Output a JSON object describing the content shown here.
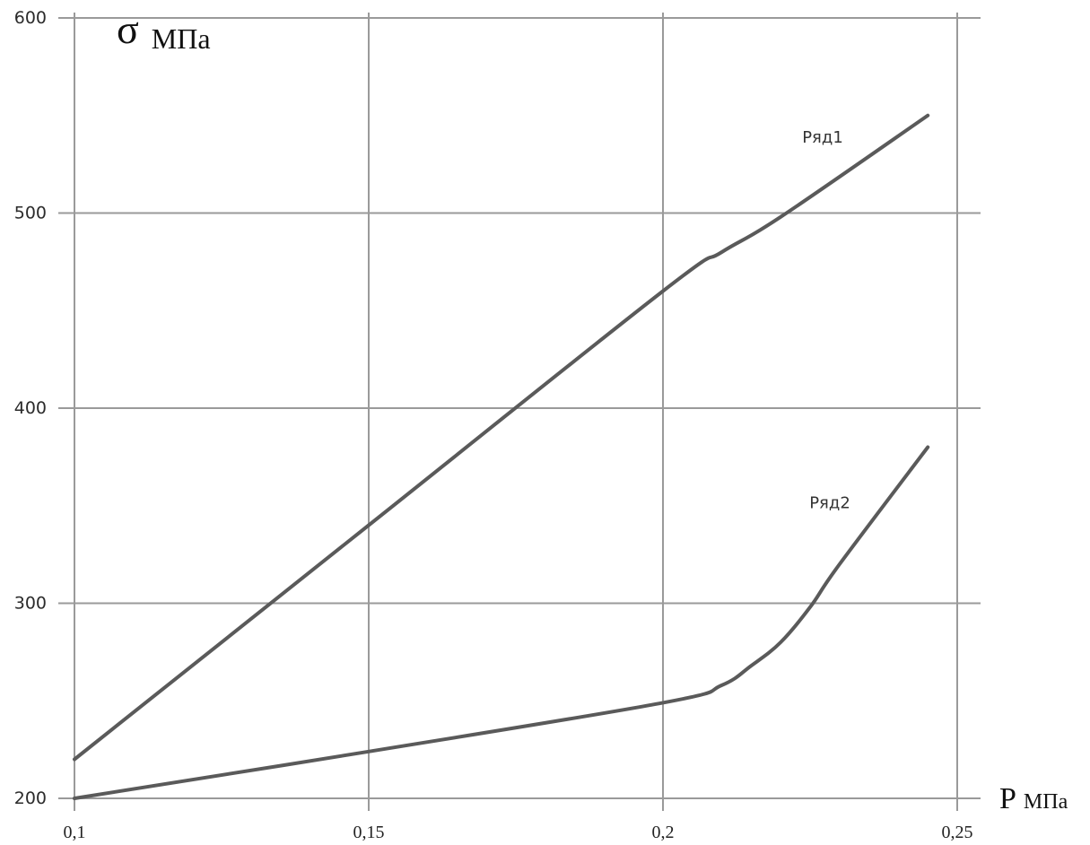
{
  "chart_data": {
    "type": "line",
    "xlabel": {
      "symbol": "P",
      "unit": "МПа"
    },
    "ylabel": {
      "symbol": "σ",
      "unit": "МПа"
    },
    "xlim": [
      0.1,
      0.25
    ],
    "ylim": [
      200,
      600
    ],
    "x_ticks": [
      0.1,
      0.15,
      0.2,
      0.25
    ],
    "x_tick_labels": [
      "0,1",
      "0,15",
      "0,2",
      "0,25"
    ],
    "y_ticks": [
      200,
      300,
      400,
      500,
      600
    ],
    "y_tick_labels": [
      "200",
      "300",
      "400",
      "500",
      "600"
    ],
    "grid": true,
    "legend": "none",
    "series": [
      {
        "name": "Ряд1",
        "color": "#5a5a5a",
        "x": [
          0.1,
          0.15,
          0.2,
          0.21,
          0.22,
          0.245
        ],
        "y": [
          220,
          340,
          460,
          480,
          498,
          550
        ]
      },
      {
        "name": "Ряд2",
        "color": "#5a5a5a",
        "x": [
          0.1,
          0.15,
          0.2,
          0.21,
          0.215,
          0.22,
          0.225,
          0.23,
          0.245
        ],
        "y": [
          200,
          224,
          249,
          258,
          268,
          280,
          298,
          320,
          380
        ]
      }
    ]
  }
}
